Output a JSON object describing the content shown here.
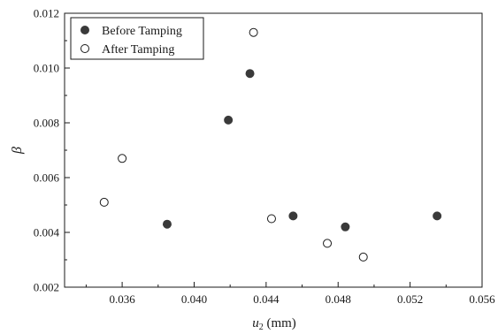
{
  "chart_data": {
    "type": "scatter",
    "title": "",
    "xlabel_main": "u",
    "xlabel_sub": "2",
    "xlabel_unit": " (mm)",
    "ylabel": "β",
    "xlim": [
      0.0328,
      0.056
    ],
    "ylim": [
      0.002,
      0.012
    ],
    "xticks": [
      0.036,
      0.04,
      0.044,
      0.048,
      0.052,
      0.056
    ],
    "xtick_labels": [
      "0.036",
      "0.040",
      "0.044",
      "0.048",
      "0.052",
      "0.056"
    ],
    "yticks": [
      0.002,
      0.004,
      0.006,
      0.008,
      0.01,
      0.012
    ],
    "ytick_labels": [
      "0.002",
      "0.004",
      "0.006",
      "0.008",
      "0.010",
      "0.012"
    ],
    "grid": false,
    "legend_position": "top-left",
    "series": [
      {
        "name": "Before Tamping",
        "marker": "filled-circle",
        "color": "#3a3a3a",
        "x": [
          0.0385,
          0.0419,
          0.0431,
          0.0455,
          0.0484,
          0.0535
        ],
        "y": [
          0.0043,
          0.0081,
          0.0098,
          0.0046,
          0.0042,
          0.0046
        ]
      },
      {
        "name": "After Tamping",
        "marker": "open-circle",
        "color": "#1a1a1a",
        "x": [
          0.035,
          0.036,
          0.0433,
          0.0443,
          0.0474,
          0.0494
        ],
        "y": [
          0.0051,
          0.0067,
          0.0113,
          0.0045,
          0.0036,
          0.0031
        ]
      }
    ]
  }
}
